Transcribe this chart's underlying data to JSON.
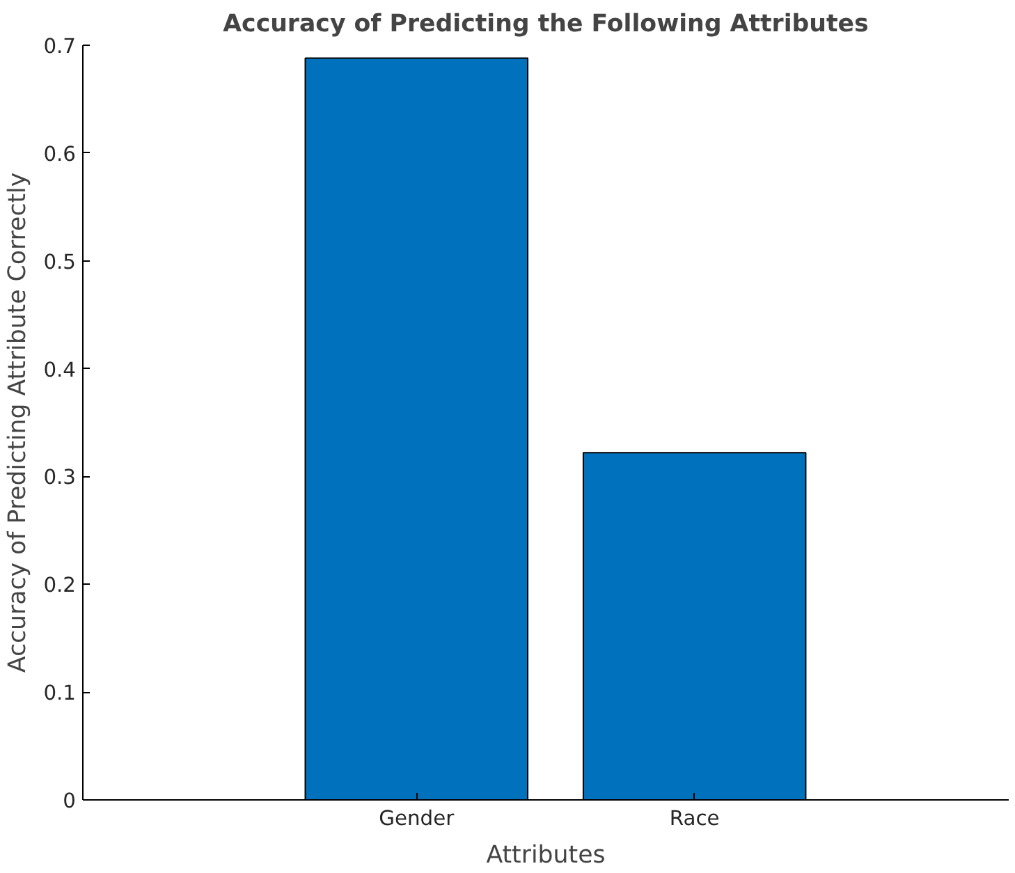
{
  "chart_data": {
    "type": "bar",
    "title": "Accuracy of Predicting the Following Attributes",
    "xlabel": "Attributes",
    "ylabel": "Accuracy of Predicting Attribute Correctly",
    "categories": [
      "Gender",
      "Race"
    ],
    "values": [
      0.688,
      0.322
    ],
    "color": "#0072bd",
    "ylim": [
      0,
      0.7
    ],
    "yticks": [
      0,
      0.1,
      0.2,
      0.3,
      0.4,
      0.5,
      0.6,
      0.7
    ],
    "grid": false
  }
}
